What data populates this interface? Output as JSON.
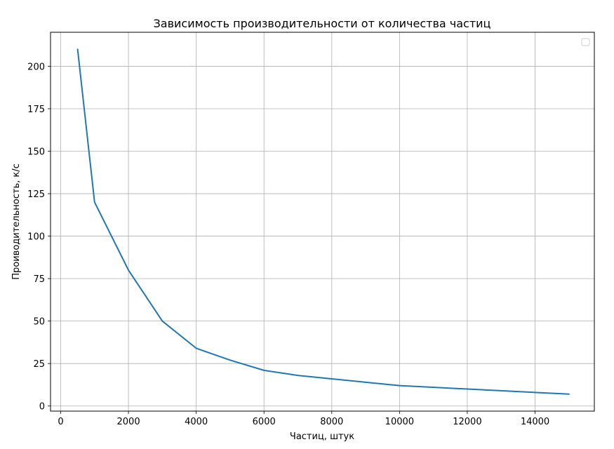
{
  "chart_data": {
    "type": "line",
    "title": "Зависимость производительности от количества частиц",
    "xlabel": "Частиц, штук",
    "ylabel": "Проиводительность, к/с",
    "xlim": [
      -300,
      15750
    ],
    "ylim": [
      -3,
      220
    ],
    "xticks": [
      0,
      2000,
      4000,
      6000,
      8000,
      10000,
      12000,
      14000
    ],
    "yticks": [
      0,
      25,
      50,
      75,
      100,
      125,
      150,
      175,
      200
    ],
    "grid": true,
    "legend": {
      "placement": "top-right",
      "entries": []
    },
    "series": [
      {
        "color": "#1f77b4",
        "x": [
          500,
          1000,
          2000,
          3000,
          4000,
          5000,
          6000,
          7000,
          8000,
          9000,
          10000,
          12000,
          15000
        ],
        "y": [
          210,
          120,
          80,
          50,
          34,
          27,
          21,
          18,
          16,
          14,
          12,
          10,
          7
        ]
      }
    ]
  }
}
